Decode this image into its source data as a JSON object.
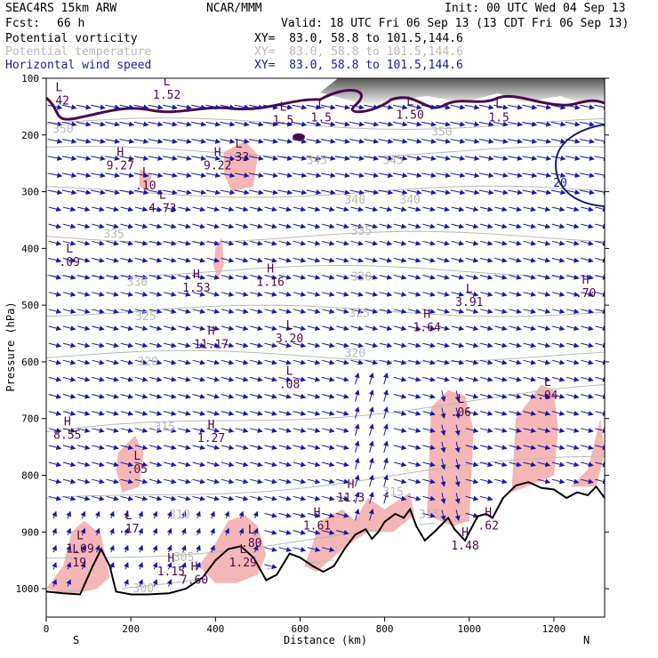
{
  "header": {
    "model": "SEAC4RS 15km ARW",
    "org": "NCAR/MMM",
    "init": "Init: 00 UTC Wed 04 Sep 13",
    "fcst_label": "Fcst:",
    "fcst_value": "66 h",
    "valid": "Valid: 18 UTC Fri 06 Sep 13 (13 CDT Fri 06 Sep 13)"
  },
  "fields": [
    {
      "name": "Potential vorticity",
      "xy": "XY=  83.0, 58.8 to 101.5,144.6",
      "color": "#000000"
    },
    {
      "name": "Potential temperature",
      "xy": "XY=  83.0, 58.8 to 101.5,144.6",
      "color": "#b8b8b8"
    },
    {
      "name": "Horizontal wind speed",
      "xy": "XY=  83.0, 58.8 to 101.5,144.6",
      "color": "#1a1aa0"
    }
  ],
  "colors": {
    "pv_shade": "#f4b6b6",
    "strat_dark": "#5a5a5a",
    "pv_contour": "#4b0a4b",
    "theta": "#b8b8b8",
    "wind": "#1a1aa0",
    "terrain": "#000000"
  },
  "chart_data": {
    "type": "cross-section",
    "xlabel": "Distance (km)",
    "ylabel": "Pressure (hPa)",
    "xlim": [
      0,
      1320
    ],
    "ylim": [
      1050,
      100
    ],
    "x_ticks": [
      0,
      200,
      400,
      600,
      800,
      1000,
      1200
    ],
    "y_ticks": [
      100,
      200,
      300,
      400,
      500,
      600,
      700,
      800,
      900,
      1000
    ],
    "endpoints": {
      "left": "S",
      "right": "N"
    },
    "terrain": [
      [
        0,
        1005
      ],
      [
        40,
        1008
      ],
      [
        80,
        1010
      ],
      [
        110,
        960
      ],
      [
        130,
        930
      ],
      [
        150,
        960
      ],
      [
        165,
        1005
      ],
      [
        200,
        1010
      ],
      [
        240,
        1010
      ],
      [
        290,
        1008
      ],
      [
        330,
        1000
      ],
      [
        370,
        980
      ],
      [
        400,
        950
      ],
      [
        430,
        930
      ],
      [
        460,
        925
      ],
      [
        490,
        945
      ],
      [
        520,
        985
      ],
      [
        545,
        975
      ],
      [
        575,
        938
      ],
      [
        600,
        945
      ],
      [
        630,
        960
      ],
      [
        655,
        970
      ],
      [
        680,
        960
      ],
      [
        705,
        930
      ],
      [
        730,
        905
      ],
      [
        755,
        895
      ],
      [
        770,
        912
      ],
      [
        785,
        900
      ],
      [
        800,
        882
      ],
      [
        825,
        868
      ],
      [
        845,
        875
      ],
      [
        860,
        860
      ],
      [
        875,
        890
      ],
      [
        895,
        915
      ],
      [
        920,
        898
      ],
      [
        950,
        875
      ],
      [
        965,
        895
      ],
      [
        990,
        915
      ],
      [
        1000,
        900
      ],
      [
        1020,
        872
      ],
      [
        1040,
        868
      ],
      [
        1055,
        875
      ],
      [
        1080,
        840
      ],
      [
        1110,
        818
      ],
      [
        1140,
        812
      ],
      [
        1170,
        822
      ],
      [
        1200,
        825
      ],
      [
        1230,
        840
      ],
      [
        1255,
        830
      ],
      [
        1280,
        835
      ],
      [
        1300,
        820
      ],
      [
        1320,
        840
      ]
    ],
    "theta_contours": [
      {
        "label": "350",
        "p_at_x0": 180
      },
      {
        "label": "345",
        "p_at_x0": 230
      },
      {
        "label": "340",
        "p_at_x0": 300
      },
      {
        "label": "335",
        "p_at_x0": 380
      },
      {
        "label": "330",
        "p_at_x0": 440
      },
      {
        "label": "325",
        "p_at_x0": 510
      },
      {
        "label": "320",
        "p_at_x0": 590
      },
      {
        "label": "315",
        "p_at_x0": 730
      },
      {
        "label": "310",
        "p_at_x0": 850
      },
      {
        "label": "305",
        "p_at_x0": 950
      },
      {
        "label": "300",
        "p_at_x0": 1000
      }
    ],
    "theta_labels": [
      {
        "text": "350",
        "x": 40,
        "p": 190
      },
      {
        "text": "345",
        "x": 640,
        "p": 245
      },
      {
        "text": "345",
        "x": 820,
        "p": 245
      },
      {
        "text": "340",
        "x": 730,
        "p": 315
      },
      {
        "text": "340",
        "x": 860,
        "p": 315
      },
      {
        "text": "335",
        "x": 160,
        "p": 375
      },
      {
        "text": "335",
        "x": 745,
        "p": 370
      },
      {
        "text": "330",
        "x": 215,
        "p": 460
      },
      {
        "text": "330",
        "x": 745,
        "p": 450
      },
      {
        "text": "325",
        "x": 235,
        "p": 520
      },
      {
        "text": "325",
        "x": 740,
        "p": 515
      },
      {
        "text": "320",
        "x": 240,
        "p": 600
      },
      {
        "text": "320",
        "x": 730,
        "p": 585
      },
      {
        "text": "315",
        "x": 280,
        "p": 715
      },
      {
        "text": "315",
        "x": 820,
        "p": 830
      },
      {
        "text": "310",
        "x": 315,
        "p": 870
      },
      {
        "text": "305",
        "x": 325,
        "p": 945
      },
      {
        "text": "300",
        "x": 230,
        "p": 1000
      },
      {
        "text": "350",
        "x": 935,
        "p": 195
      },
      {
        "text": "315",
        "x": 905,
        "p": 870
      }
    ],
    "extrema": [
      {
        "type": "L",
        "value": ".42",
        "x": 30,
        "p": 135
      },
      {
        "type": "L",
        "value": "1.52",
        "x": 285,
        "p": 125
      },
      {
        "type": "L",
        "value": "1.5",
        "x": 560,
        "p": 170
      },
      {
        "type": "L",
        "value": "1.5",
        "x": 650,
        "p": 165
      },
      {
        "type": "L",
        "value": "1.50",
        "x": 860,
        "p": 160
      },
      {
        "type": "L",
        "value": "1.5",
        "x": 1070,
        "p": 165
      },
      {
        "type": "H",
        "value": "9.27",
        "x": 175,
        "p": 250
      },
      {
        "type": "L",
        "value": ".10",
        "x": 235,
        "p": 285
      },
      {
        "type": "H",
        "value": "9.22",
        "x": 405,
        "p": 250
      },
      {
        "type": "L",
        "value": ".33",
        "x": 455,
        "p": 235
      },
      {
        "type": "L",
        "value": "4.73",
        "x": 275,
        "p": 325
      },
      {
        "type": "L",
        "value": ".09",
        "x": 55,
        "p": 420
      },
      {
        "type": "H",
        "value": "1.53",
        "x": 355,
        "p": 465
      },
      {
        "type": "H",
        "value": "1.16",
        "x": 530,
        "p": 455
      },
      {
        "type": "L",
        "value": "3.91",
        "x": 1000,
        "p": 490
      },
      {
        "type": "H",
        "value": "1.64",
        "x": 900,
        "p": 535
      },
      {
        "type": "H",
        "value": ".70",
        "x": 1275,
        "p": 475
      },
      {
        "type": "H",
        "value": "11.17",
        "x": 390,
        "p": 565
      },
      {
        "type": "L",
        "value": "3.20",
        "x": 575,
        "p": 555
      },
      {
        "type": "L",
        "value": ".08",
        "x": 575,
        "p": 635
      },
      {
        "type": "L",
        "value": ".06",
        "x": 980,
        "p": 685
      },
      {
        "type": "L",
        "value": ".04",
        "x": 1185,
        "p": 655
      },
      {
        "type": "H",
        "value": "8.55",
        "x": 50,
        "p": 725
      },
      {
        "type": "H",
        "value": "1.27",
        "x": 390,
        "p": 730
      },
      {
        "type": "L",
        "value": ".05",
        "x": 215,
        "p": 785
      },
      {
        "type": "H",
        "value": "11.3",
        "x": 720,
        "p": 835
      },
      {
        "type": "H",
        "value": "1.61",
        "x": 640,
        "p": 885
      },
      {
        "type": "L",
        "value": ".17",
        "x": 195,
        "p": 890
      },
      {
        "type": "H",
        "value": ".62",
        "x": 1045,
        "p": 885
      },
      {
        "type": "L",
        "value": ".80",
        "x": 485,
        "p": 915
      },
      {
        "type": "L",
        "value": "1.09",
        "x": 80,
        "p": 925
      },
      {
        "type": "H",
        "value": "1.48",
        "x": 990,
        "p": 920
      },
      {
        "type": "L",
        "value": ".19",
        "x": 70,
        "p": 950
      },
      {
        "type": "H",
        "value": "1.15",
        "x": 295,
        "p": 965
      },
      {
        "type": "L",
        "value": "1.29",
        "x": 465,
        "p": 950
      },
      {
        "type": "H",
        "value": "7.60",
        "x": 350,
        "p": 980
      }
    ],
    "speed_labels": [
      {
        "text": "20",
        "x": 1215,
        "p": 285
      }
    ],
    "pv_shaded_regions": [
      [
        [
          420,
          230
        ],
        [
          470,
          210
        ],
        [
          500,
          235
        ],
        [
          490,
          290
        ],
        [
          440,
          300
        ],
        [
          420,
          270
        ]
      ],
      [
        [
          220,
          260
        ],
        [
          250,
          270
        ],
        [
          240,
          300
        ],
        [
          220,
          290
        ]
      ],
      [
        [
          400,
          400
        ],
        [
          415,
          380
        ],
        [
          420,
          430
        ],
        [
          405,
          455
        ],
        [
          395,
          430
        ]
      ],
      [
        [
          170,
          760
        ],
        [
          210,
          730
        ],
        [
          230,
          760
        ],
        [
          220,
          820
        ],
        [
          180,
          830
        ],
        [
          165,
          790
        ]
      ],
      [
        [
          0,
          1000
        ],
        [
          40,
          960
        ],
        [
          60,
          900
        ],
        [
          90,
          880
        ],
        [
          130,
          905
        ],
        [
          150,
          980
        ],
        [
          120,
          1000
        ],
        [
          60,
          1010
        ]
      ],
      [
        [
          360,
          960
        ],
        [
          400,
          920
        ],
        [
          430,
          880
        ],
        [
          470,
          870
        ],
        [
          500,
          890
        ],
        [
          520,
          940
        ],
        [
          500,
          975
        ],
        [
          450,
          990
        ],
        [
          400,
          990
        ]
      ],
      [
        [
          610,
          960
        ],
        [
          650,
          880
        ],
        [
          700,
          860
        ],
        [
          730,
          880
        ],
        [
          760,
          840
        ],
        [
          800,
          860
        ],
        [
          860,
          830
        ],
        [
          870,
          870
        ],
        [
          820,
          900
        ],
        [
          760,
          900
        ],
        [
          700,
          930
        ],
        [
          640,
          970
        ]
      ],
      [
        [
          900,
          870
        ],
        [
          910,
          680
        ],
        [
          950,
          650
        ],
        [
          990,
          660
        ],
        [
          1010,
          720
        ],
        [
          1000,
          880
        ],
        [
          960,
          890
        ]
      ],
      [
        [
          1100,
          830
        ],
        [
          1110,
          700
        ],
        [
          1140,
          670
        ],
        [
          1170,
          640
        ],
        [
          1200,
          650
        ],
        [
          1210,
          720
        ],
        [
          1200,
          800
        ],
        [
          1170,
          810
        ]
      ],
      [
        [
          1240,
          820
        ],
        [
          1280,
          790
        ],
        [
          1310,
          700
        ],
        [
          1320,
          760
        ],
        [
          1300,
          820
        ]
      ]
    ]
  }
}
